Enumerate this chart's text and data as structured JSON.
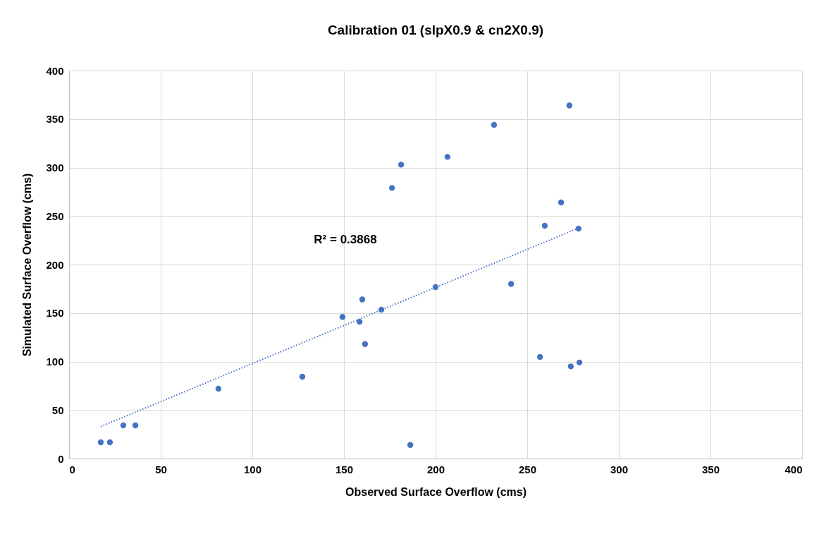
{
  "chart_data": {
    "type": "scatter",
    "title": "Calibration 01 (slpX0.9 & cn2X0.9)",
    "xlabel": "Observed Surface Overflow (cms)",
    "ylabel": "Simulated Surface Overflow (cms)",
    "xlim": [
      0,
      400
    ],
    "xticks": [
      0,
      50,
      100,
      150,
      200,
      250,
      300,
      350,
      400
    ],
    "ylim": [
      0,
      400
    ],
    "yticks": [
      0,
      50,
      100,
      150,
      200,
      250,
      300,
      350,
      400
    ],
    "grid": true,
    "marker": "circle",
    "series": [
      {
        "color": "#4472c4",
        "x": [
          17.3,
          22.3,
          29.6,
          36.2,
          81.5,
          127.3,
          149.2,
          158.5,
          160,
          161.5,
          170.4,
          176.2,
          181.2,
          186.2,
          200,
          206.5,
          231.9,
          241.2,
          257,
          259.6,
          268.5,
          273,
          273.8,
          278,
          278.5
        ],
        "values": [
          16.7,
          16.7,
          34.2,
          34.2,
          72,
          84.4,
          146,
          141,
          164,
          118,
          153.5,
          279,
          303,
          14,
          176.7,
          311,
          344,
          180,
          104.7,
          240,
          264,
          364,
          95,
          237,
          99
        ]
      },
      {
        "type": "line",
        "color": "#4472c4",
        "line_style": "dotted",
        "marker": "none",
        "x": [
          17.3,
          278.5
        ],
        "values": [
          33,
          238
        ]
      }
    ],
    "annotations": [
      "R² = 0.3868"
    ]
  }
}
